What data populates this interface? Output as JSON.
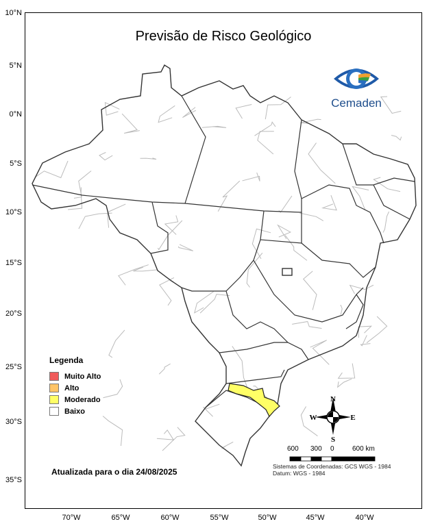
{
  "title": "Previsão de Risco Geológico",
  "logo": {
    "text": "Cemaden"
  },
  "lat_labels": [
    "10°N",
    "5°N",
    "0°N",
    "5°S",
    "10°S",
    "15°S",
    "20°S",
    "25°S",
    "30°S",
    "35°S"
  ],
  "lon_labels": [
    "70°W",
    "65°W",
    "60°W",
    "55°W",
    "50°W",
    "45°W",
    "40°W"
  ],
  "legend": {
    "title": "Legenda",
    "items": [
      {
        "label": "Muito Alto",
        "color": "#f05a5a"
      },
      {
        "label": "Alto",
        "color": "#ffc466"
      },
      {
        "label": "Moderado",
        "color": "#ffff66"
      },
      {
        "label": "Baixo",
        "color": "#ffffff"
      }
    ]
  },
  "highlighted_risk": {
    "level": "Moderado",
    "region": "Santa Catarina / Rio Grande do Sul border"
  },
  "updated_text": "Atualizada para o dia 24/08/2025",
  "compass": {
    "n": "N",
    "s": "S",
    "e": "E",
    "w": "W"
  },
  "scale": {
    "labels": [
      "600",
      "300",
      "0",
      "600 km"
    ]
  },
  "crs": {
    "line1": "Sistemas de Coordenadas: GCS WGS - 1984",
    "line2": "Datum: WGS - 1984"
  }
}
